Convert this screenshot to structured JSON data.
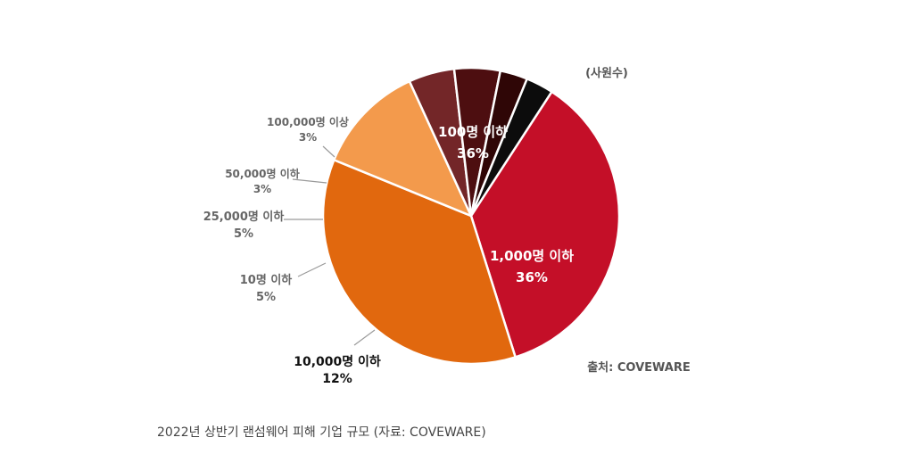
{
  "chart_data": {
    "type": "pie",
    "unit_label": "(사원수)",
    "source": "출처: COVEWARE",
    "start_angle_deg": -57,
    "slices": [
      {
        "label": "100명 이하",
        "value": 36,
        "percent_label": "36%",
        "color": "#c40f28"
      },
      {
        "label": "1,000명 이하",
        "value": 36,
        "percent_label": "36%",
        "color": "#e1680e"
      },
      {
        "label": "10,000명 이하",
        "value": 12,
        "percent_label": "12%",
        "color": "#f39a4c"
      },
      {
        "label": "10명 이하",
        "value": 5,
        "percent_label": "5%",
        "color": "#732628"
      },
      {
        "label": "25,000명 이하",
        "value": 5,
        "percent_label": "5%",
        "color": "#4d0e10"
      },
      {
        "label": "50,000명 이하",
        "value": 3,
        "percent_label": "3%",
        "color": "#2f0606"
      },
      {
        "label": "100,000명 이상",
        "value": 3,
        "percent_label": "3%",
        "color": "#0c0c0c"
      }
    ]
  },
  "caption": "2022년 상반기 랜섬웨어 피해 기업 규모 (자료: COVEWARE)"
}
